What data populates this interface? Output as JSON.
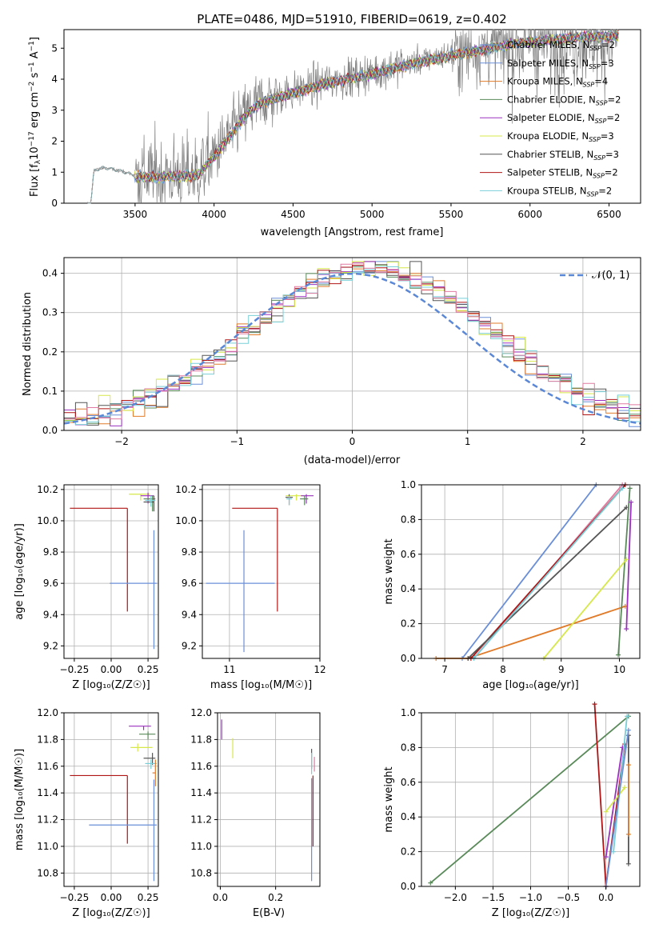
{
  "figure": {
    "title": "PLATE=0486, MJD=51910, FIBERID=0619, z=0.402"
  },
  "colors": {
    "chabrier_miles": "#6a8fd8",
    "salpeter_miles": "#6a8fd8",
    "kroupa_miles": "#e07b2a",
    "chabrier_elodie": "#5a8a5a",
    "salpeter_elodie": "#9b30c0",
    "kroupa_elodie": "#d6e84a",
    "chabrier_stelib": "#555555",
    "salpeter_stelib": "#b01515",
    "kroupa_stelib": "#79cfd8",
    "data": "#808080",
    "normal": "#5b88d6",
    "pink": "#e07aa0"
  },
  "chart_data": [
    {
      "id": "spectrum",
      "type": "line",
      "title": "PLATE=0486, MJD=51910, FIBERID=0619, z=0.402",
      "xlabel": "wavelength [Angstrom, rest frame]",
      "ylabel_pre": "Flux [f",
      "ylabel_sub": "λ",
      "ylabel_mid": "10",
      "ylabel_sup1": "−17",
      "ylabel_post": " erg cm",
      "ylabel_sup2": "−2",
      "ylabel_mid2": " s",
      "ylabel_sup3": "−1",
      "ylabel_mid3": " A",
      "ylabel_sup4": "−1",
      "ylabel_end": "]",
      "xlim": [
        3050,
        6700
      ],
      "ylim": [
        0,
        5.6
      ],
      "xticks": [
        3500,
        4000,
        4500,
        5000,
        5500,
        6000,
        6500
      ],
      "yticks": [
        0,
        1,
        2,
        3,
        4,
        5
      ],
      "grid": false,
      "legend_position": "upper-right",
      "legend": [
        {
          "name": "Chabrier MILES, N",
          "sub": "SSP",
          "post": "=2",
          "color": "#6a8fd8"
        },
        {
          "name": "Salpeter MILES, N",
          "sub": "SSP",
          "post": "=3",
          "color": "#6a8fd8"
        },
        {
          "name": "Kroupa MILES, N",
          "sub": "SSP",
          "post": "=4",
          "color": "#e07b2a"
        },
        {
          "name": "Chabrier ELODIE, N",
          "sub": "SSP",
          "post": "=2",
          "color": "#5a8a5a"
        },
        {
          "name": "Salpeter ELODIE, N",
          "sub": "SSP",
          "post": "=2",
          "color": "#9b30c0"
        },
        {
          "name": "Kroupa ELODIE, N",
          "sub": "SSP",
          "post": "=3",
          "color": "#d6e84a"
        },
        {
          "name": "Chabrier STELIB, N",
          "sub": "SSP",
          "post": "=3",
          "color": "#555555"
        },
        {
          "name": "Salpeter STELIB, N",
          "sub": "SSP",
          "post": "=2",
          "color": "#b01515"
        },
        {
          "name": "Kroupa STELIB, N",
          "sub": "SSP",
          "post": "=2",
          "color": "#79cfd8"
        }
      ],
      "model_trend": [
        [
          3220,
          0
        ],
        [
          3240,
          1.05
        ],
        [
          3300,
          1.15
        ],
        [
          3400,
          1.05
        ],
        [
          3500,
          0.9
        ],
        [
          3700,
          0.9
        ],
        [
          3900,
          0.95
        ],
        [
          4000,
          1.55
        ],
        [
          4100,
          2.2
        ],
        [
          4200,
          2.9
        ],
        [
          4300,
          3.3
        ],
        [
          4500,
          3.6
        ],
        [
          4700,
          3.9
        ],
        [
          4900,
          4.1
        ],
        [
          5100,
          4.35
        ],
        [
          5300,
          4.6
        ],
        [
          5500,
          4.8
        ],
        [
          5700,
          5.0
        ],
        [
          5900,
          5.2
        ],
        [
          6100,
          5.3
        ],
        [
          6300,
          5.4
        ],
        [
          6550,
          5.45
        ]
      ],
      "data_range": [
        3200,
        6560
      ]
    },
    {
      "id": "residual_histogram",
      "type": "histogram",
      "xlabel": "(data-model)/error",
      "ylabel": "Normed distribution",
      "xlim": [
        -2.5,
        2.5
      ],
      "ylim": [
        0,
        0.44
      ],
      "xticks": [
        -2,
        -1,
        0,
        1,
        2
      ],
      "yticks": [
        0.0,
        0.1,
        0.2,
        0.3,
        0.4
      ],
      "grid": true,
      "legend": [
        {
          "name": "𝒩(0, 1)",
          "color": "#5b88d6",
          "style": "dashed"
        }
      ],
      "legend_position": "upper-right",
      "bin_width": 0.1
    },
    {
      "id": "age_vs_Z",
      "type": "errorbar",
      "xlabel": "Z [log₁₀(Z/Z☉)]",
      "ylabel": "age  [log₁₀(age/yr)]",
      "xlim": [
        -0.32,
        0.32
      ],
      "ylim": [
        9.12,
        10.23
      ],
      "xticks": [
        -0.25,
        0.0,
        0.25
      ],
      "xticklabels": [
        "−0.25",
        "0.00",
        "0.25"
      ],
      "yticks": [
        9.2,
        9.4,
        9.6,
        9.8,
        10.0,
        10.2
      ],
      "grid": true,
      "points": [
        {
          "x": 0.11,
          "y": 10.08,
          "xerr": [
            0.39,
            0.0
          ],
          "yerr": [
            0.66,
            0.0
          ],
          "color": "#b01515"
        },
        {
          "x": 0.29,
          "y": 9.6,
          "xerr": [
            0.3,
            0.02
          ],
          "yerr": [
            0.42,
            0.34
          ],
          "color": "#6a8fd8"
        },
        {
          "x": 0.2,
          "y": 10.17,
          "xerr": [
            0.08,
            0.06
          ],
          "yerr": [
            0.04,
            0.0
          ],
          "color": "#d6e84a"
        },
        {
          "x": 0.25,
          "y": 10.16,
          "xerr": [
            0.05,
            0.04
          ],
          "yerr": [
            0.05,
            0.02
          ],
          "color": "#9b30c0"
        },
        {
          "x": 0.28,
          "y": 10.14,
          "xerr": [
            0.06,
            0.02
          ],
          "yerr": [
            0.08,
            0.02
          ],
          "color": "#5a8a5a"
        },
        {
          "x": 0.29,
          "y": 10.12,
          "xerr": [
            0.07,
            0.0
          ],
          "yerr": [
            0.06,
            0.04
          ],
          "color": "#555555"
        },
        {
          "x": 0.27,
          "y": 10.13,
          "xerr": [
            0.04,
            0.03
          ],
          "yerr": [
            0.04,
            0.03
          ],
          "color": "#79cfd8"
        }
      ]
    },
    {
      "id": "age_vs_mass",
      "type": "errorbar",
      "xlabel": "mass [log₁₀(M/M☉)]",
      "ylabel": "",
      "xlim": [
        10.7,
        12.0
      ],
      "ylim": [
        9.12,
        10.23
      ],
      "xticks": [
        11,
        12
      ],
      "yticks": [
        9.2,
        9.4,
        9.6,
        9.8,
        10.0,
        10.2
      ],
      "grid": true,
      "points": [
        {
          "x": 11.53,
          "y": 10.08,
          "xerr": [
            0.5,
            0.0
          ],
          "yerr": [
            0.66,
            0.0
          ],
          "color": "#b01515"
        },
        {
          "x": 11.16,
          "y": 9.6,
          "xerr": [
            0.42,
            0.34
          ],
          "yerr": [
            0.44,
            0.34
          ],
          "color": "#6a8fd8"
        },
        {
          "x": 11.74,
          "y": 10.16,
          "xerr": [
            0.12,
            0.08
          ],
          "yerr": [
            0.03,
            0.01
          ],
          "color": "#d6e84a"
        },
        {
          "x": 11.85,
          "y": 10.16,
          "xerr": [
            0.06,
            0.08
          ],
          "yerr": [
            0.05,
            0.01
          ],
          "color": "#9b30c0"
        },
        {
          "x": 11.83,
          "y": 10.14,
          "xerr": [
            0.05,
            0.04
          ],
          "yerr": [
            0.04,
            0.02
          ],
          "color": "#5a8a5a"
        },
        {
          "x": 11.66,
          "y": 10.15,
          "xerr": [
            0.04,
            0.04
          ],
          "yerr": [
            0.05,
            0.02
          ],
          "color": "#555555"
        },
        {
          "x": 11.66,
          "y": 10.14,
          "xerr": [
            0.03,
            0.03
          ],
          "yerr": [
            0.04,
            0.02
          ],
          "color": "#79cfd8"
        }
      ]
    },
    {
      "id": "massweight_vs_age",
      "type": "line",
      "xlabel": "age  [log₁₀(age/yr)]",
      "ylabel": "mass weight",
      "xlim": [
        6.6,
        10.35
      ],
      "ylim": [
        0,
        1.0
      ],
      "xticks": [
        7,
        8,
        9,
        10
      ],
      "yticks": [
        0.0,
        0.2,
        0.4,
        0.6,
        0.8,
        1.0
      ],
      "grid": true,
      "series": [
        {
          "color": "#6a8fd8",
          "points": [
            [
              7.3,
              0.0
            ],
            [
              9.6,
              1.0
            ]
          ]
        },
        {
          "color": "#e07b2a",
          "points": [
            [
              6.85,
              0.0
            ],
            [
              7.4,
              0.0
            ],
            [
              10.1,
              0.3
            ]
          ]
        },
        {
          "color": "#e07aa0",
          "points": [
            [
              7.5,
              0.0
            ],
            [
              10.05,
              1.0
            ]
          ]
        },
        {
          "color": "#b01515",
          "points": [
            [
              7.45,
              0.0
            ],
            [
              10.1,
              1.0
            ]
          ]
        },
        {
          "color": "#555555",
          "points": [
            [
              7.4,
              0.0
            ],
            [
              10.12,
              0.87
            ]
          ]
        },
        {
          "color": "#5a8a5a",
          "points": [
            [
              9.98,
              0.02
            ],
            [
              10.18,
              0.98
            ]
          ]
        },
        {
          "color": "#9b30c0",
          "points": [
            [
              10.12,
              0.17
            ],
            [
              10.2,
              0.9
            ]
          ]
        },
        {
          "color": "#d6e84a",
          "points": [
            [
              8.7,
              0.0
            ],
            [
              10.12,
              0.57
            ]
          ]
        },
        {
          "color": "#79cfd8",
          "points": [
            [
              7.5,
              0.0
            ],
            [
              10.05,
              0.98
            ]
          ]
        }
      ]
    },
    {
      "id": "mass_vs_Z",
      "type": "errorbar",
      "xlabel": "Z [log₁₀(Z/Z☉)]",
      "ylabel": "mass [log₁₀(M/M☉)]",
      "xlim": [
        -0.32,
        0.32
      ],
      "ylim": [
        10.7,
        12.0
      ],
      "xticks": [
        -0.25,
        0.0,
        0.25
      ],
      "xticklabels": [
        "−0.25",
        "0.00",
        "0.25"
      ],
      "yticks": [
        10.8,
        11.0,
        11.2,
        11.4,
        11.6,
        11.8,
        12.0
      ],
      "grid": true,
      "points": [
        {
          "x": 0.11,
          "y": 11.53,
          "xerr": [
            0.39,
            0.0
          ],
          "yerr": [
            0.51,
            0.0
          ],
          "color": "#b01515"
        },
        {
          "x": 0.29,
          "y": 11.16,
          "xerr": [
            0.44,
            0.02
          ],
          "yerr": [
            0.42,
            0.34
          ],
          "color": "#6a8fd8"
        },
        {
          "x": 0.22,
          "y": 11.9,
          "xerr": [
            0.1,
            0.05
          ],
          "yerr": [
            0.03,
            0.0
          ],
          "color": "#9b30c0"
        },
        {
          "x": 0.25,
          "y": 11.84,
          "xerr": [
            0.06,
            0.05
          ],
          "yerr": [
            0.04,
            0.02
          ],
          "color": "#5a8a5a"
        },
        {
          "x": 0.18,
          "y": 11.74,
          "xerr": [
            0.05,
            0.1
          ],
          "yerr": [
            0.03,
            0.03
          ],
          "color": "#d6e84a"
        },
        {
          "x": 0.28,
          "y": 11.66,
          "xerr": [
            0.06,
            0.02
          ],
          "yerr": [
            0.05,
            0.04
          ],
          "color": "#555555"
        },
        {
          "x": 0.27,
          "y": 11.62,
          "xerr": [
            0.04,
            0.04
          ],
          "yerr": [
            0.04,
            0.03
          ],
          "color": "#79cfd8"
        },
        {
          "x": 0.3,
          "y": 11.55,
          "xerr": [
            0.02,
            0.0
          ],
          "yerr": [
            0.1,
            0.1
          ],
          "color": "#e07b2a"
        }
      ]
    },
    {
      "id": "mass_vs_EBV",
      "type": "errorbar",
      "xlabel": "E(B-V)",
      "ylabel": "",
      "xlim": [
        -0.01,
        0.36
      ],
      "ylim": [
        10.7,
        12.0
      ],
      "xticks": [
        0.0,
        0.2
      ],
      "xticklabels": [
        "0.0",
        "0.2"
      ],
      "yticks": [
        10.8,
        11.0,
        11.2,
        11.4,
        11.6,
        11.8,
        12.0
      ],
      "grid": true,
      "points": [
        {
          "x": 0.005,
          "y": 11.87,
          "xerr": [
            0,
            0
          ],
          "yerr": [
            0.07,
            0.08
          ],
          "color": "#9b30c0"
        },
        {
          "x": 0.045,
          "y": 11.74,
          "xerr": [
            0,
            0
          ],
          "yerr": [
            0.08,
            0.07
          ],
          "color": "#d6e84a"
        },
        {
          "x": 0.33,
          "y": 11.66,
          "xerr": [
            0,
            0
          ],
          "yerr": [
            0.08,
            0.07
          ],
          "color": "#555555"
        },
        {
          "x": 0.335,
          "y": 11.43,
          "xerr": [
            0,
            0
          ],
          "yerr": [
            0.43,
            0.1
          ],
          "color": "#b01515"
        },
        {
          "x": 0.33,
          "y": 11.17,
          "xerr": [
            0,
            0
          ],
          "yerr": [
            0.43,
            0.34
          ],
          "color": "#6a8fd8"
        },
        {
          "x": 0.34,
          "y": 11.62,
          "xerr": [
            0,
            0
          ],
          "yerr": [
            0.06,
            0.05
          ],
          "color": "#e07aa0"
        },
        {
          "x": 0.33,
          "y": 11.6,
          "xerr": [
            0,
            0
          ],
          "yerr": [
            0.06,
            0.1
          ],
          "color": "#79cfd8"
        }
      ]
    },
    {
      "id": "massweight_vs_Z",
      "type": "line",
      "xlabel": "Z [log₁₀(Z/Z☉)]",
      "ylabel": "mass weight",
      "xlim": [
        -2.45,
        0.45
      ],
      "ylim": [
        0,
        1.0
      ],
      "xticks": [
        -2.0,
        -1.5,
        -1.0,
        -0.5,
        0.0
      ],
      "xticklabels": [
        "−2.0",
        "−1.5",
        "−1.0",
        "−0.5",
        "0.0"
      ],
      "yticks": [
        0.0,
        0.2,
        0.4,
        0.6,
        0.8,
        1.0
      ],
      "grid": true,
      "series": [
        {
          "color": "#5a8a5a",
          "points": [
            [
              -2.33,
              0.02
            ],
            [
              0.3,
              0.98
            ]
          ]
        },
        {
          "color": "#b01515",
          "points": [
            [
              -0.15,
              1.05
            ],
            [
              0.0,
              0.0
            ],
            [
              0.25,
              0.82
            ]
          ]
        },
        {
          "color": "#9b30c0",
          "points": [
            [
              0.0,
              0.17
            ],
            [
              0.22,
              0.8
            ]
          ]
        },
        {
          "color": "#d6e84a",
          "points": [
            [
              0.0,
              0.43
            ],
            [
              0.25,
              0.57
            ]
          ]
        },
        {
          "color": "#555555",
          "points": [
            [
              0.3,
              0.13
            ],
            [
              0.3,
              0.87
            ]
          ]
        },
        {
          "color": "#e07b2a",
          "points": [
            [
              0.3,
              0.3
            ],
            [
              0.3,
              0.7
            ]
          ]
        },
        {
          "color": "#79cfd8",
          "points": [
            [
              0.1,
              0.2
            ],
            [
              0.28,
              0.98
            ]
          ]
        },
        {
          "color": "#6a8fd8",
          "points": [
            [
              0.0,
              0.0
            ],
            [
              0.3,
              0.9
            ]
          ]
        }
      ]
    }
  ]
}
